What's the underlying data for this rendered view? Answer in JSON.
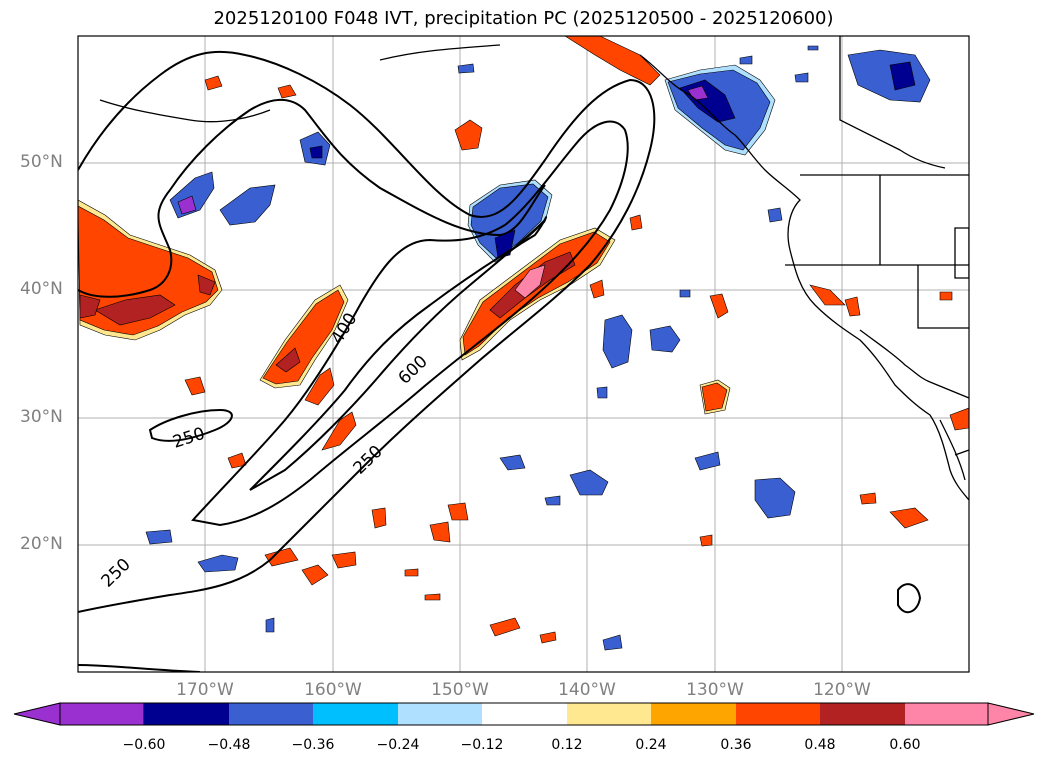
{
  "title": "2025120100 F048 IVT, precipitation PC (2025120500 - 2025120600)",
  "lat_labels": [
    "50°N",
    "40°N",
    "30°N",
    "20°N"
  ],
  "lon_labels": [
    "170°W",
    "160°W",
    "150°W",
    "140°W",
    "130°W",
    "120°W"
  ],
  "contour_labels": [
    "250",
    "400",
    "600",
    "250",
    "250"
  ],
  "colorbar": {
    "tick_labels": [
      "−0.60",
      "−0.48",
      "−0.36",
      "−0.24",
      "−0.12",
      "0.12",
      "0.24",
      "0.36",
      "0.48",
      "0.60"
    ],
    "colors": [
      "#9b30d0",
      "#000090",
      "#3a5fd0",
      "#00bfff",
      "#b0e0ff",
      "#ffffff",
      "#ffe890",
      "#ffa500",
      "#ff4500",
      "#b22222",
      "#ff85a8"
    ]
  },
  "colors": {
    "purple": "#9b30d0",
    "navy": "#000090",
    "blue": "#3a5fd0",
    "cyan": "#00bfff",
    "lightblue": "#b0e0ff",
    "yellow": "#ffe890",
    "orange": "#ffa500",
    "redorange": "#ff4500",
    "firebrick": "#b22222",
    "pink": "#ff85a8",
    "grid": "#b0b0b0",
    "contour": "#000000"
  }
}
